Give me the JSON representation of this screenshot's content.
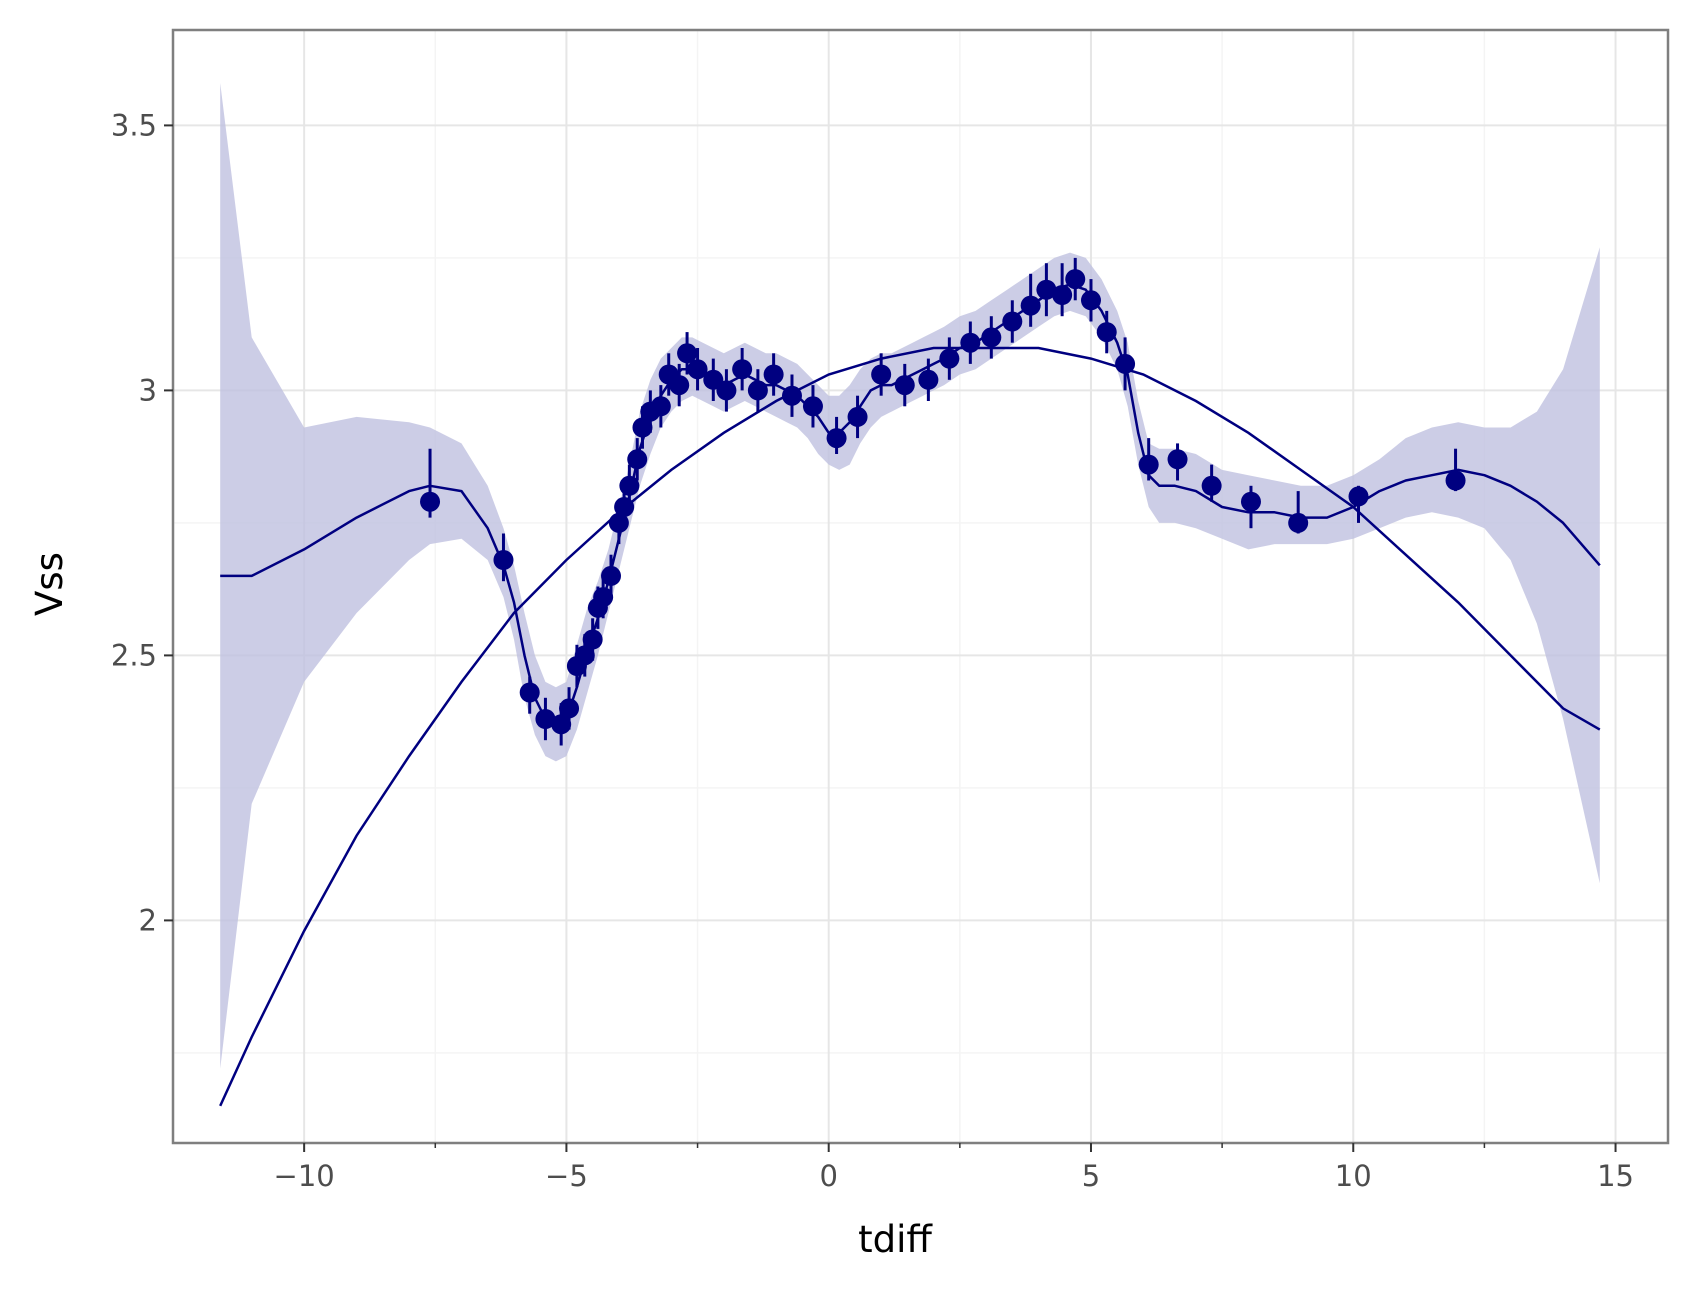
{
  "chart_data": {
    "type": "scatter",
    "title": "",
    "xlabel": "tdiff",
    "ylabel": "Vss",
    "xlim": [
      -12.5,
      16
    ],
    "ylim": [
      1.58,
      3.68
    ],
    "x_ticks": [
      -10,
      -5,
      0,
      5,
      10,
      15
    ],
    "x_tick_labels": [
      "−10",
      "−5",
      "0",
      "5",
      "10",
      "15"
    ],
    "y_ticks": [
      2,
      2.5,
      3,
      3.5
    ],
    "y_tick_labels": [
      "2",
      "2.5",
      "3",
      "3.5"
    ],
    "grid": true,
    "legend": "none",
    "colors": {
      "series": "#000080",
      "band": "#bfc0e0",
      "grid_major": "#e6e6e6",
      "grid_minor": "#f4f4f4",
      "panel_border": "#7f7f7f"
    },
    "points": [
      {
        "x": -7.6,
        "y": 2.79,
        "lo": 2.76,
        "hi": 2.89
      },
      {
        "x": -6.2,
        "y": 2.68,
        "lo": 2.64,
        "hi": 2.73
      },
      {
        "x": -5.7,
        "y": 2.43,
        "lo": 2.39,
        "hi": 2.46
      },
      {
        "x": -5.4,
        "y": 2.38,
        "lo": 2.34,
        "hi": 2.42
      },
      {
        "x": -5.1,
        "y": 2.37,
        "lo": 2.33,
        "hi": 2.41
      },
      {
        "x": -4.95,
        "y": 2.4,
        "lo": 2.36,
        "hi": 2.44
      },
      {
        "x": -4.8,
        "y": 2.48,
        "lo": 2.44,
        "hi": 2.52
      },
      {
        "x": -4.65,
        "y": 2.5,
        "lo": 2.46,
        "hi": 2.54
      },
      {
        "x": -4.5,
        "y": 2.53,
        "lo": 2.49,
        "hi": 2.57
      },
      {
        "x": -4.4,
        "y": 2.59,
        "lo": 2.55,
        "hi": 2.63
      },
      {
        "x": -4.3,
        "y": 2.61,
        "lo": 2.57,
        "hi": 2.65
      },
      {
        "x": -4.15,
        "y": 2.65,
        "lo": 2.61,
        "hi": 2.69
      },
      {
        "x": -4.0,
        "y": 2.75,
        "lo": 2.71,
        "hi": 2.79
      },
      {
        "x": -3.9,
        "y": 2.78,
        "lo": 2.74,
        "hi": 2.82
      },
      {
        "x": -3.8,
        "y": 2.82,
        "lo": 2.78,
        "hi": 2.86
      },
      {
        "x": -3.65,
        "y": 2.87,
        "lo": 2.83,
        "hi": 2.91
      },
      {
        "x": -3.55,
        "y": 2.93,
        "lo": 2.89,
        "hi": 2.97
      },
      {
        "x": -3.4,
        "y": 2.96,
        "lo": 2.92,
        "hi": 3.0
      },
      {
        "x": -3.2,
        "y": 2.97,
        "lo": 2.93,
        "hi": 3.01
      },
      {
        "x": -3.05,
        "y": 3.03,
        "lo": 2.99,
        "hi": 3.07
      },
      {
        "x": -2.85,
        "y": 3.01,
        "lo": 2.97,
        "hi": 3.05
      },
      {
        "x": -2.7,
        "y": 3.07,
        "lo": 3.03,
        "hi": 3.11
      },
      {
        "x": -2.5,
        "y": 3.04,
        "lo": 3.0,
        "hi": 3.08
      },
      {
        "x": -2.2,
        "y": 3.02,
        "lo": 2.98,
        "hi": 3.06
      },
      {
        "x": -1.95,
        "y": 3.0,
        "lo": 2.96,
        "hi": 3.04
      },
      {
        "x": -1.65,
        "y": 3.04,
        "lo": 3.0,
        "hi": 3.08
      },
      {
        "x": -1.35,
        "y": 3.0,
        "lo": 2.96,
        "hi": 3.04
      },
      {
        "x": -1.05,
        "y": 3.03,
        "lo": 2.99,
        "hi": 3.07
      },
      {
        "x": -0.7,
        "y": 2.99,
        "lo": 2.95,
        "hi": 3.03
      },
      {
        "x": -0.3,
        "y": 2.97,
        "lo": 2.93,
        "hi": 3.01
      },
      {
        "x": 0.15,
        "y": 2.91,
        "lo": 2.88,
        "hi": 2.95
      },
      {
        "x": 0.55,
        "y": 2.95,
        "lo": 2.91,
        "hi": 2.99
      },
      {
        "x": 1.0,
        "y": 3.03,
        "lo": 2.99,
        "hi": 3.07
      },
      {
        "x": 1.45,
        "y": 3.01,
        "lo": 2.97,
        "hi": 3.05
      },
      {
        "x": 1.9,
        "y": 3.02,
        "lo": 2.98,
        "hi": 3.06
      },
      {
        "x": 2.3,
        "y": 3.06,
        "lo": 3.02,
        "hi": 3.1
      },
      {
        "x": 2.7,
        "y": 3.09,
        "lo": 3.05,
        "hi": 3.13
      },
      {
        "x": 3.1,
        "y": 3.1,
        "lo": 3.06,
        "hi": 3.14
      },
      {
        "x": 3.5,
        "y": 3.13,
        "lo": 3.09,
        "hi": 3.17
      },
      {
        "x": 3.85,
        "y": 3.16,
        "lo": 3.12,
        "hi": 3.22
      },
      {
        "x": 4.15,
        "y": 3.19,
        "lo": 3.14,
        "hi": 3.24
      },
      {
        "x": 4.45,
        "y": 3.18,
        "lo": 3.14,
        "hi": 3.24
      },
      {
        "x": 4.7,
        "y": 3.21,
        "lo": 3.17,
        "hi": 3.25
      },
      {
        "x": 5.0,
        "y": 3.17,
        "lo": 3.13,
        "hi": 3.21
      },
      {
        "x": 5.3,
        "y": 3.11,
        "lo": 3.07,
        "hi": 3.15
      },
      {
        "x": 5.65,
        "y": 3.05,
        "lo": 3.0,
        "hi": 3.1
      },
      {
        "x": 6.1,
        "y": 2.86,
        "lo": 2.83,
        "hi": 2.91
      },
      {
        "x": 6.65,
        "y": 2.87,
        "lo": 2.83,
        "hi": 2.9
      },
      {
        "x": 7.3,
        "y": 2.82,
        "lo": 2.79,
        "hi": 2.86
      },
      {
        "x": 8.05,
        "y": 2.79,
        "lo": 2.74,
        "hi": 2.82
      },
      {
        "x": 8.95,
        "y": 2.75,
        "lo": 2.73,
        "hi": 2.81
      },
      {
        "x": 10.1,
        "y": 2.8,
        "lo": 2.75,
        "hi": 2.82
      },
      {
        "x": 11.95,
        "y": 2.83,
        "lo": 2.81,
        "hi": 2.89
      }
    ],
    "smooth_fit": {
      "x": [
        -11.6,
        -11.0,
        -10.0,
        -9.0,
        -8.0,
        -7.6,
        -7.0,
        -6.5,
        -6.2,
        -6.0,
        -5.8,
        -5.6,
        -5.4,
        -5.2,
        -5.0,
        -4.8,
        -4.6,
        -4.4,
        -4.2,
        -4.0,
        -3.8,
        -3.6,
        -3.4,
        -3.2,
        -3.0,
        -2.8,
        -2.6,
        -2.4,
        -2.2,
        -2.0,
        -1.8,
        -1.6,
        -1.4,
        -1.2,
        -1.0,
        -0.8,
        -0.6,
        -0.4,
        -0.2,
        0.0,
        0.2,
        0.4,
        0.6,
        0.8,
        1.0,
        1.2,
        1.4,
        1.6,
        1.8,
        2.0,
        2.2,
        2.5,
        2.8,
        3.1,
        3.4,
        3.7,
        4.0,
        4.3,
        4.6,
        4.9,
        5.2,
        5.5,
        5.7,
        5.9,
        6.1,
        6.3,
        6.6,
        7.0,
        7.5,
        8.0,
        8.5,
        9.0,
        9.5,
        10.0,
        10.5,
        11.0,
        11.5,
        12.0,
        12.5,
        13.0,
        13.5,
        14.0,
        14.7
      ],
      "y": [
        2.65,
        2.65,
        2.7,
        2.76,
        2.81,
        2.82,
        2.81,
        2.74,
        2.67,
        2.6,
        2.5,
        2.42,
        2.38,
        2.37,
        2.38,
        2.44,
        2.51,
        2.57,
        2.64,
        2.72,
        2.8,
        2.89,
        2.95,
        2.99,
        3.02,
        3.04,
        3.04,
        3.03,
        3.02,
        3.01,
        3.02,
        3.03,
        3.02,
        3.01,
        3.01,
        3.0,
        2.99,
        2.97,
        2.95,
        2.92,
        2.92,
        2.94,
        2.97,
        3.0,
        3.01,
        3.01,
        3.02,
        3.03,
        3.04,
        3.05,
        3.06,
        3.08,
        3.09,
        3.11,
        3.13,
        3.15,
        3.17,
        3.19,
        3.2,
        3.19,
        3.15,
        3.09,
        3.03,
        2.92,
        2.84,
        2.82,
        2.82,
        2.81,
        2.78,
        2.77,
        2.77,
        2.76,
        2.76,
        2.78,
        2.81,
        2.83,
        2.84,
        2.85,
        2.84,
        2.82,
        2.79,
        2.75,
        2.67
      ],
      "band_lo": [
        1.72,
        2.22,
        2.45,
        2.58,
        2.68,
        2.71,
        2.72,
        2.68,
        2.61,
        2.53,
        2.42,
        2.35,
        2.31,
        2.3,
        2.31,
        2.36,
        2.43,
        2.5,
        2.58,
        2.66,
        2.74,
        2.82,
        2.88,
        2.93,
        2.96,
        2.98,
        2.99,
        2.98,
        2.97,
        2.96,
        2.97,
        2.98,
        2.97,
        2.96,
        2.95,
        2.94,
        2.93,
        2.91,
        2.88,
        2.86,
        2.85,
        2.86,
        2.9,
        2.93,
        2.95,
        2.96,
        2.97,
        2.98,
        2.99,
        3.0,
        3.01,
        3.03,
        3.04,
        3.06,
        3.08,
        3.1,
        3.12,
        3.14,
        3.15,
        3.14,
        3.1,
        3.04,
        2.97,
        2.86,
        2.78,
        2.75,
        2.75,
        2.74,
        2.72,
        2.7,
        2.71,
        2.71,
        2.71,
        2.72,
        2.74,
        2.76,
        2.77,
        2.76,
        2.74,
        2.68,
        2.56,
        2.38,
        2.07
      ],
      "band_hi": [
        3.58,
        3.1,
        2.93,
        2.95,
        2.94,
        2.93,
        2.9,
        2.82,
        2.74,
        2.67,
        2.58,
        2.5,
        2.45,
        2.44,
        2.45,
        2.52,
        2.59,
        2.64,
        2.7,
        2.78,
        2.86,
        2.96,
        3.02,
        3.06,
        3.08,
        3.1,
        3.1,
        3.09,
        3.08,
        3.07,
        3.08,
        3.09,
        3.08,
        3.07,
        3.07,
        3.06,
        3.05,
        3.03,
        3.01,
        2.99,
        2.99,
        3.01,
        3.04,
        3.06,
        3.07,
        3.07,
        3.08,
        3.09,
        3.1,
        3.11,
        3.12,
        3.14,
        3.15,
        3.17,
        3.19,
        3.21,
        3.23,
        3.25,
        3.26,
        3.25,
        3.21,
        3.15,
        3.09,
        2.98,
        2.9,
        2.89,
        2.89,
        2.88,
        2.85,
        2.84,
        2.83,
        2.82,
        2.82,
        2.84,
        2.87,
        2.91,
        2.93,
        2.94,
        2.93,
        2.93,
        2.96,
        3.04,
        3.27
      ]
    },
    "quadratic_fit": {
      "x": [
        -11.6,
        -11.0,
        -10.0,
        -9.0,
        -8.0,
        -7.0,
        -6.0,
        -5.0,
        -4.0,
        -3.0,
        -2.0,
        -1.0,
        0.0,
        1.0,
        2.0,
        3.0,
        4.0,
        5.0,
        6.0,
        7.0,
        8.0,
        9.0,
        10.0,
        11.0,
        12.0,
        13.0,
        14.0,
        14.7
      ],
      "y": [
        1.65,
        1.78,
        1.98,
        2.16,
        2.31,
        2.45,
        2.58,
        2.68,
        2.77,
        2.85,
        2.92,
        2.98,
        3.03,
        3.06,
        3.08,
        3.08,
        3.08,
        3.06,
        3.03,
        2.98,
        2.92,
        2.85,
        2.78,
        2.69,
        2.6,
        2.5,
        2.4,
        2.36
      ]
    }
  }
}
